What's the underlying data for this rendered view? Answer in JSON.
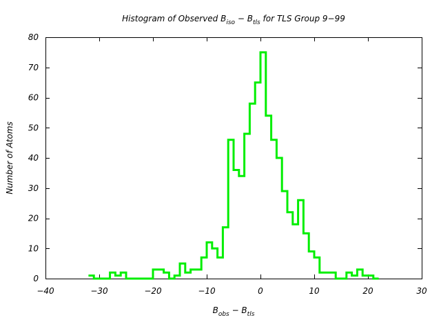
{
  "chart_data": {
    "type": "histogram",
    "title": {
      "prefix": "Histogram of Observed B",
      "sub1": "iso",
      "middle": " − B",
      "sub2": "tls",
      "suffix": "  for TLS Group 9−99"
    },
    "xlabel": {
      "base1": "B",
      "sub1": "obs",
      "middle": " − B",
      "sub2": "tls"
    },
    "ylabel": "Number of Atoms",
    "xlim": [
      -40,
      30
    ],
    "ylim": [
      0,
      80
    ],
    "x_ticks": [
      -40,
      -30,
      -20,
      -10,
      0,
      10,
      20,
      30
    ],
    "x_tick_labels": [
      "−40",
      "−30",
      "−20",
      "−10",
      "0",
      "10",
      "20",
      "30"
    ],
    "y_ticks": [
      0,
      10,
      20,
      30,
      40,
      50,
      60,
      70,
      80
    ],
    "y_tick_labels": [
      "0",
      "10",
      "20",
      "30",
      "40",
      "50",
      "60",
      "70",
      "80"
    ],
    "line_color": "#00ee00",
    "bin_width": 1,
    "series": [
      {
        "bin_starts": [
          -32,
          -31,
          -30,
          -29,
          -28,
          -27,
          -26,
          -25,
          -24,
          -23,
          -22,
          -21,
          -20,
          -19,
          -18,
          -17,
          -16,
          -15,
          -14,
          -13,
          -12,
          -11,
          -10,
          -9,
          -8,
          -7,
          -6,
          -5,
          -4,
          -3,
          -2,
          -1,
          0,
          1,
          2,
          3,
          4,
          5,
          6,
          7,
          8,
          9,
          10,
          11,
          12,
          13,
          14,
          15,
          16,
          17,
          18,
          19,
          20,
          21
        ],
        "counts": [
          1,
          0,
          0,
          0,
          2,
          1,
          2,
          0,
          0,
          0,
          0,
          0,
          3,
          3,
          2,
          0,
          1,
          5,
          2,
          3,
          3,
          7,
          12,
          10,
          7,
          17,
          46,
          36,
          34,
          48,
          58,
          65,
          75,
          54,
          46,
          40,
          29,
          22,
          18,
          26,
          15,
          9,
          7,
          2,
          2,
          2,
          0,
          0,
          2,
          1,
          3,
          1,
          1,
          0
        ]
      }
    ]
  }
}
